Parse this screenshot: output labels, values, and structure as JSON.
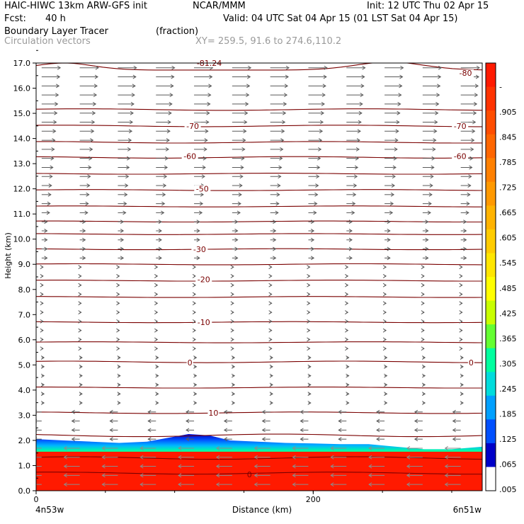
{
  "header": {
    "model": "HAIC-HIWC 13km ARW-GFS init",
    "org": "NCAR/MMM",
    "init": "Init: 12 UTC Thu 02 Apr 15",
    "fcst_label": "Fcst:",
    "fcst_value": "40 h",
    "valid": "Valid: 04 UTC Sat 04 Apr 15 (01 LST Sat 04 Apr 15)",
    "field": "Boundary Layer Tracer",
    "field_units": "(fraction)",
    "overlay": "Circulation vectors",
    "xy": "XY= 259.5, 91.6 to 274.6,110.2"
  },
  "chart_data": {
    "type": "heatmap",
    "title": "Boundary Layer Tracer",
    "units": "(fraction)",
    "ylabel": "Height (km)",
    "xlabel": "Distance (km)",
    "ylim": [
      0,
      17
    ],
    "xlim": [
      0,
      322
    ],
    "x_ticks": [
      0,
      200
    ],
    "x_tick_labels": [
      "0",
      "200"
    ],
    "x_endpoints": [
      "4n53w",
      "6n51w"
    ],
    "y_ticks": [
      0,
      1,
      2,
      3,
      4,
      5,
      6,
      7,
      8,
      9,
      10,
      11,
      12,
      13,
      14,
      15,
      16,
      17
    ],
    "y_tick_labels": [
      "0.0",
      "1.0",
      "2.0",
      "3.0",
      "4.0",
      "5.0",
      "6.0",
      "7.0",
      "8.0",
      "9.0",
      "10.0",
      "11.0",
      "12.0",
      "13.0",
      "14.0",
      "15.0",
      "16.0",
      "17.0"
    ],
    "colorbar_labels": [
      "-",
      ".905",
      ".845",
      ".785",
      ".725",
      ".665",
      ".605",
      ".545",
      ".485",
      ".425",
      ".365",
      ".305",
      ".245",
      ".185",
      ".125",
      ".065",
      ".005"
    ],
    "colorbar_colors": [
      "#ff1a00",
      "#ff3300",
      "#ff4d00",
      "#ff6600",
      "#ff8000",
      "#ff9900",
      "#ffb300",
      "#ffcc00",
      "#ffe600",
      "#ffff00",
      "#c8ff00",
      "#64ff32",
      "#00ff9f",
      "#00dcdc",
      "#00a0ff",
      "#0050ff",
      "#0000c8",
      "#ffffff"
    ],
    "boundary_layer_top_km": [
      [
        0,
        2.05
      ],
      [
        20,
        2.0
      ],
      [
        40,
        1.95
      ],
      [
        60,
        1.9
      ],
      [
        80,
        1.95
      ],
      [
        95,
        2.1
      ],
      [
        110,
        2.25
      ],
      [
        125,
        2.2
      ],
      [
        140,
        2.0
      ],
      [
        160,
        1.95
      ],
      [
        180,
        1.9
      ],
      [
        200,
        1.88
      ],
      [
        220,
        1.85
      ],
      [
        240,
        1.85
      ],
      [
        260,
        1.75
      ],
      [
        280,
        1.65
      ],
      [
        300,
        1.65
      ],
      [
        322,
        1.75
      ]
    ],
    "temperature_contours": [
      {
        "label": "-81.24",
        "value": -81.24
      },
      {
        "label": "-80",
        "value": -80
      },
      {
        "label": "-70",
        "value": -70
      },
      {
        "label": "-60",
        "value": -60
      },
      {
        "label": "-50",
        "value": -50
      },
      {
        "label": "-30",
        "value": -30
      },
      {
        "label": "-20",
        "value": -20
      },
      {
        "label": "-10",
        "value": -10
      },
      {
        "label": "0",
        "value": 0
      },
      {
        "label": "10",
        "value": 10
      }
    ],
    "contour_labels": [
      {
        "text": "-81.24",
        "x": 125,
        "y": 17.0
      },
      {
        "text": "-80",
        "x": 310,
        "y": 16.6
      },
      {
        "text": "-70",
        "x": 113,
        "y": 14.5
      },
      {
        "text": "-70",
        "x": 306,
        "y": 14.5
      },
      {
        "text": "-60",
        "x": 111,
        "y": 13.3
      },
      {
        "text": "-60",
        "x": 306,
        "y": 13.3
      },
      {
        "text": "-50",
        "x": 120,
        "y": 12.0
      },
      {
        "text": "-30",
        "x": 118,
        "y": 9.6
      },
      {
        "text": "-20",
        "x": 121,
        "y": 8.4
      },
      {
        "text": "-10",
        "x": 121,
        "y": 6.7
      },
      {
        "text": "0",
        "x": 111,
        "y": 5.1
      },
      {
        "text": "0",
        "x": 314,
        "y": 5.1
      },
      {
        "text": "10",
        "x": 128,
        "y": 3.1
      },
      {
        "text": "0",
        "x": 154,
        "y": 0.65
      }
    ]
  }
}
